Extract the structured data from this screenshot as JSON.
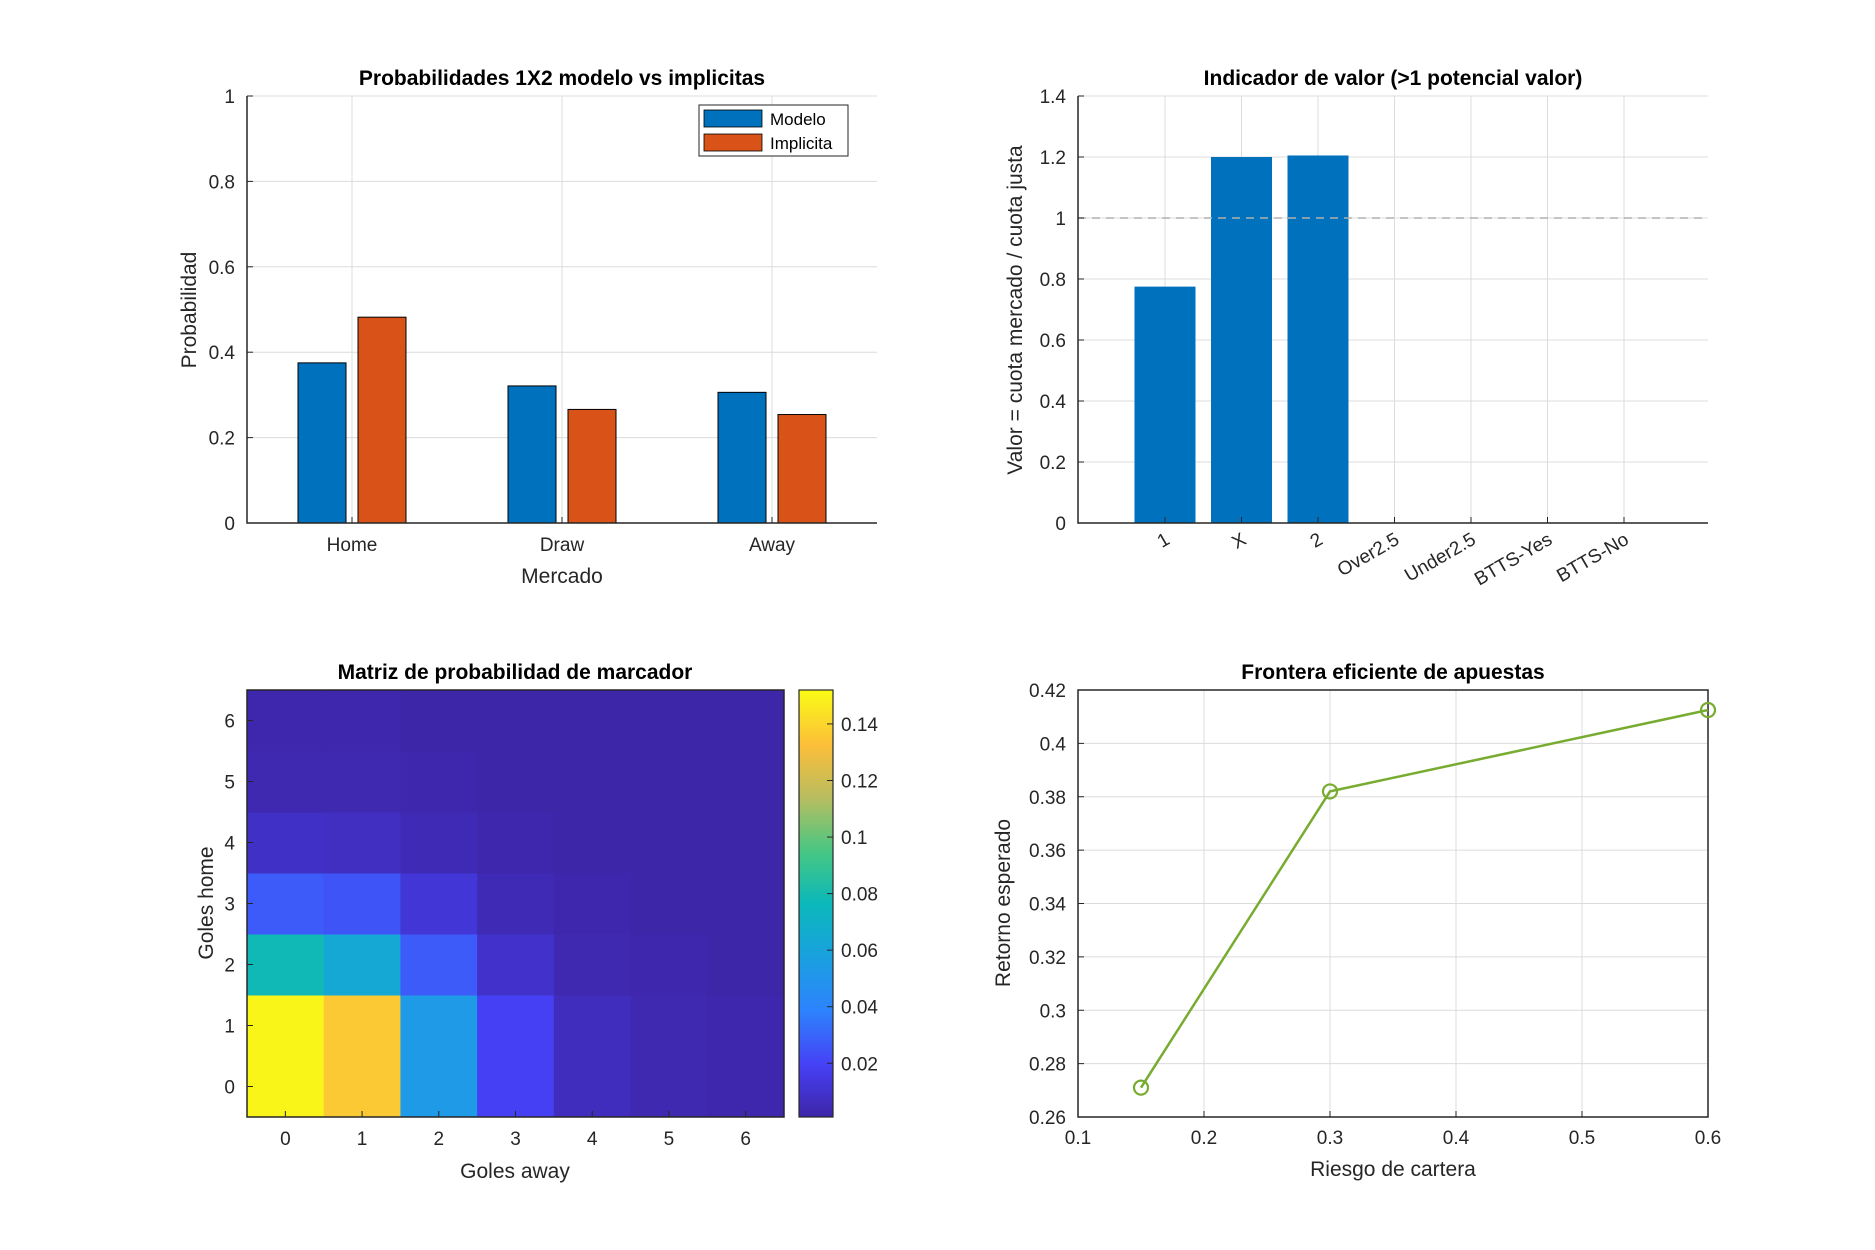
{
  "chart_data": [
    {
      "type": "bar",
      "title": "Probabilidades 1X2 modelo vs implicitas",
      "xlabel": "Mercado",
      "ylabel": "Probabilidad",
      "categories": [
        "Home",
        "Draw",
        "Away"
      ],
      "series": [
        {
          "name": "Modelo",
          "values": [
            0.375,
            0.321,
            0.306
          ],
          "color": "#0072BD"
        },
        {
          "name": "Implicita",
          "values": [
            0.482,
            0.266,
            0.254
          ],
          "color": "#D95319"
        }
      ],
      "ylim": [
        0,
        1
      ],
      "yticks": [
        0,
        0.2,
        0.4,
        0.6,
        0.8,
        1
      ],
      "ytick_labels": [
        "0",
        "0.2",
        "0.4",
        "0.6",
        "0.8",
        "1"
      ],
      "grid": true,
      "legend": "top-right"
    },
    {
      "type": "bar",
      "title": "Indicador de valor (>1 potencial valor)",
      "xlabel": "",
      "ylabel": "Valor = cuota mercado / cuota justa",
      "categories": [
        "1",
        "X",
        "2",
        "Over2.5",
        "Under2.5",
        "BTTS-Yes",
        "BTTS-No"
      ],
      "values": [
        0.775,
        1.2,
        1.205,
        0,
        0,
        0,
        0
      ],
      "color": "#0072BD",
      "reference_line": {
        "y": 1,
        "style": "dashed"
      },
      "ylim": [
        0,
        1.4
      ],
      "yticks": [
        0,
        0.2,
        0.4,
        0.6,
        0.8,
        1,
        1.2,
        1.4
      ],
      "ytick_labels": [
        "0",
        "0.2",
        "0.4",
        "0.6",
        "0.8",
        "1",
        "1.2",
        "1.4"
      ],
      "grid": true
    },
    {
      "type": "heatmap",
      "title": "Matriz de probabilidad de marcador",
      "xlabel": "Goles away",
      "ylabel": "Goles home",
      "x": [
        0,
        1,
        2,
        3,
        4,
        5,
        6
      ],
      "y": [
        0,
        1,
        2,
        3,
        4,
        5,
        6
      ],
      "values": [
        [
          0.15,
          0.136,
          0.053,
          0.019,
          0.006,
          0.003,
          0.002
        ],
        [
          0.15,
          0.136,
          0.053,
          0.019,
          0.006,
          0.003,
          0.002
        ],
        [
          0.078,
          0.063,
          0.027,
          0.009,
          0.003,
          0.002,
          0.001
        ],
        [
          0.027,
          0.025,
          0.012,
          0.004,
          0.002,
          0.001,
          0.001
        ],
        [
          0.008,
          0.007,
          0.004,
          0.002,
          0.001,
          0.001,
          0.001
        ],
        [
          0.003,
          0.003,
          0.002,
          0.001,
          0.001,
          0.001,
          0.001
        ],
        [
          0.002,
          0.002,
          0.001,
          0.001,
          0.001,
          0.001,
          0.001
        ]
      ],
      "clim": [
        0.001,
        0.152
      ],
      "colormap": "parula",
      "colorbar_ticks": [
        0.02,
        0.04,
        0.06,
        0.08,
        0.1,
        0.12,
        0.14
      ],
      "colorbar_tick_labels": [
        "0.02",
        "0.04",
        "0.06",
        "0.08",
        "0.1",
        "0.12",
        "0.14"
      ],
      "xtick_labels": [
        "0",
        "1",
        "2",
        "3",
        "4",
        "5",
        "6"
      ],
      "ytick_labels": [
        "0",
        "1",
        "2",
        "3",
        "4",
        "5",
        "6"
      ]
    },
    {
      "type": "line",
      "title": "Frontera eficiente de apuestas",
      "xlabel": "Riesgo de cartera",
      "ylabel": "Retorno esperado",
      "x": [
        0.15,
        0.3,
        0.6
      ],
      "y": [
        0.271,
        0.382,
        0.4125
      ],
      "color": "#77AC30",
      "marker": "circle",
      "xlim": [
        0.1,
        0.6
      ],
      "ylim": [
        0.26,
        0.42
      ],
      "xticks": [
        0.1,
        0.2,
        0.3,
        0.4,
        0.5,
        0.6
      ],
      "xtick_labels": [
        "0.1",
        "0.2",
        "0.3",
        "0.4",
        "0.5",
        "0.6"
      ],
      "yticks": [
        0.26,
        0.28,
        0.3,
        0.32,
        0.34,
        0.36,
        0.38,
        0.4,
        0.42
      ],
      "ytick_labels": [
        "0.26",
        "0.28",
        "0.3",
        "0.32",
        "0.34",
        "0.36",
        "0.38",
        "0.4",
        "0.42"
      ],
      "grid": true
    }
  ]
}
